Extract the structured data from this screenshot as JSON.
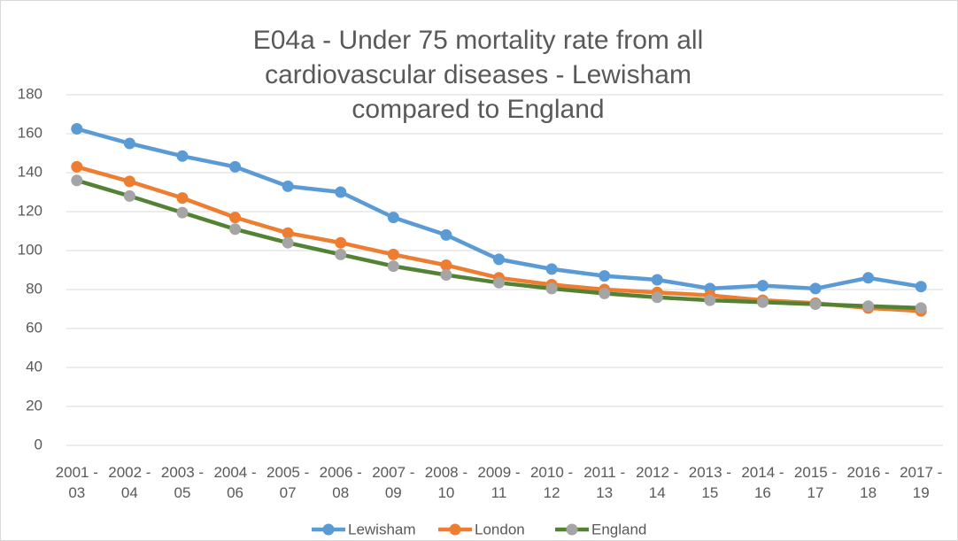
{
  "chart_data": {
    "type": "line",
    "title": "E04a - Under 75 mortality rate from all cardiovascular diseases - Lewisham compared to England",
    "categories": [
      "2001 - 03",
      "2002 - 04",
      "2003 - 05",
      "2004 - 06",
      "2005 - 07",
      "2006 - 08",
      "2007 - 09",
      "2008 - 10",
      "2009 - 11",
      "2010 - 12",
      "2011 - 13",
      "2012 - 14",
      "2013 - 15",
      "2014 - 16",
      "2015 - 17",
      "2016 - 18",
      "2017 - 19"
    ],
    "series": [
      {
        "name": "Lewisham",
        "color": "#5b9bd5",
        "marker_color": "#5b9bd5",
        "values": [
          162.5,
          155,
          148.5,
          143,
          133,
          130,
          117,
          108,
          95.5,
          90.5,
          87,
          85,
          80.5,
          82,
          80.5,
          86,
          81.5
        ]
      },
      {
        "name": "London",
        "color": "#ed7d31",
        "marker_color": "#ed7d31",
        "values": [
          143,
          135.5,
          127,
          117,
          109,
          104,
          98,
          92.5,
          86,
          82.5,
          80,
          78.5,
          77,
          74.5,
          73,
          70.5,
          69
        ]
      },
      {
        "name": "England",
        "color": "#548235",
        "marker_color": "#a5a5a5",
        "values": [
          136,
          128,
          119.5,
          111,
          104,
          98,
          92,
          87.5,
          83.5,
          80.5,
          78,
          76,
          74.5,
          73.5,
          72.5,
          71.5,
          70.5
        ]
      }
    ],
    "ylim": [
      0,
      180
    ],
    "yticks": [
      0,
      20,
      40,
      60,
      80,
      100,
      120,
      140,
      160,
      180
    ],
    "grid": true,
    "legend": "bottom"
  }
}
